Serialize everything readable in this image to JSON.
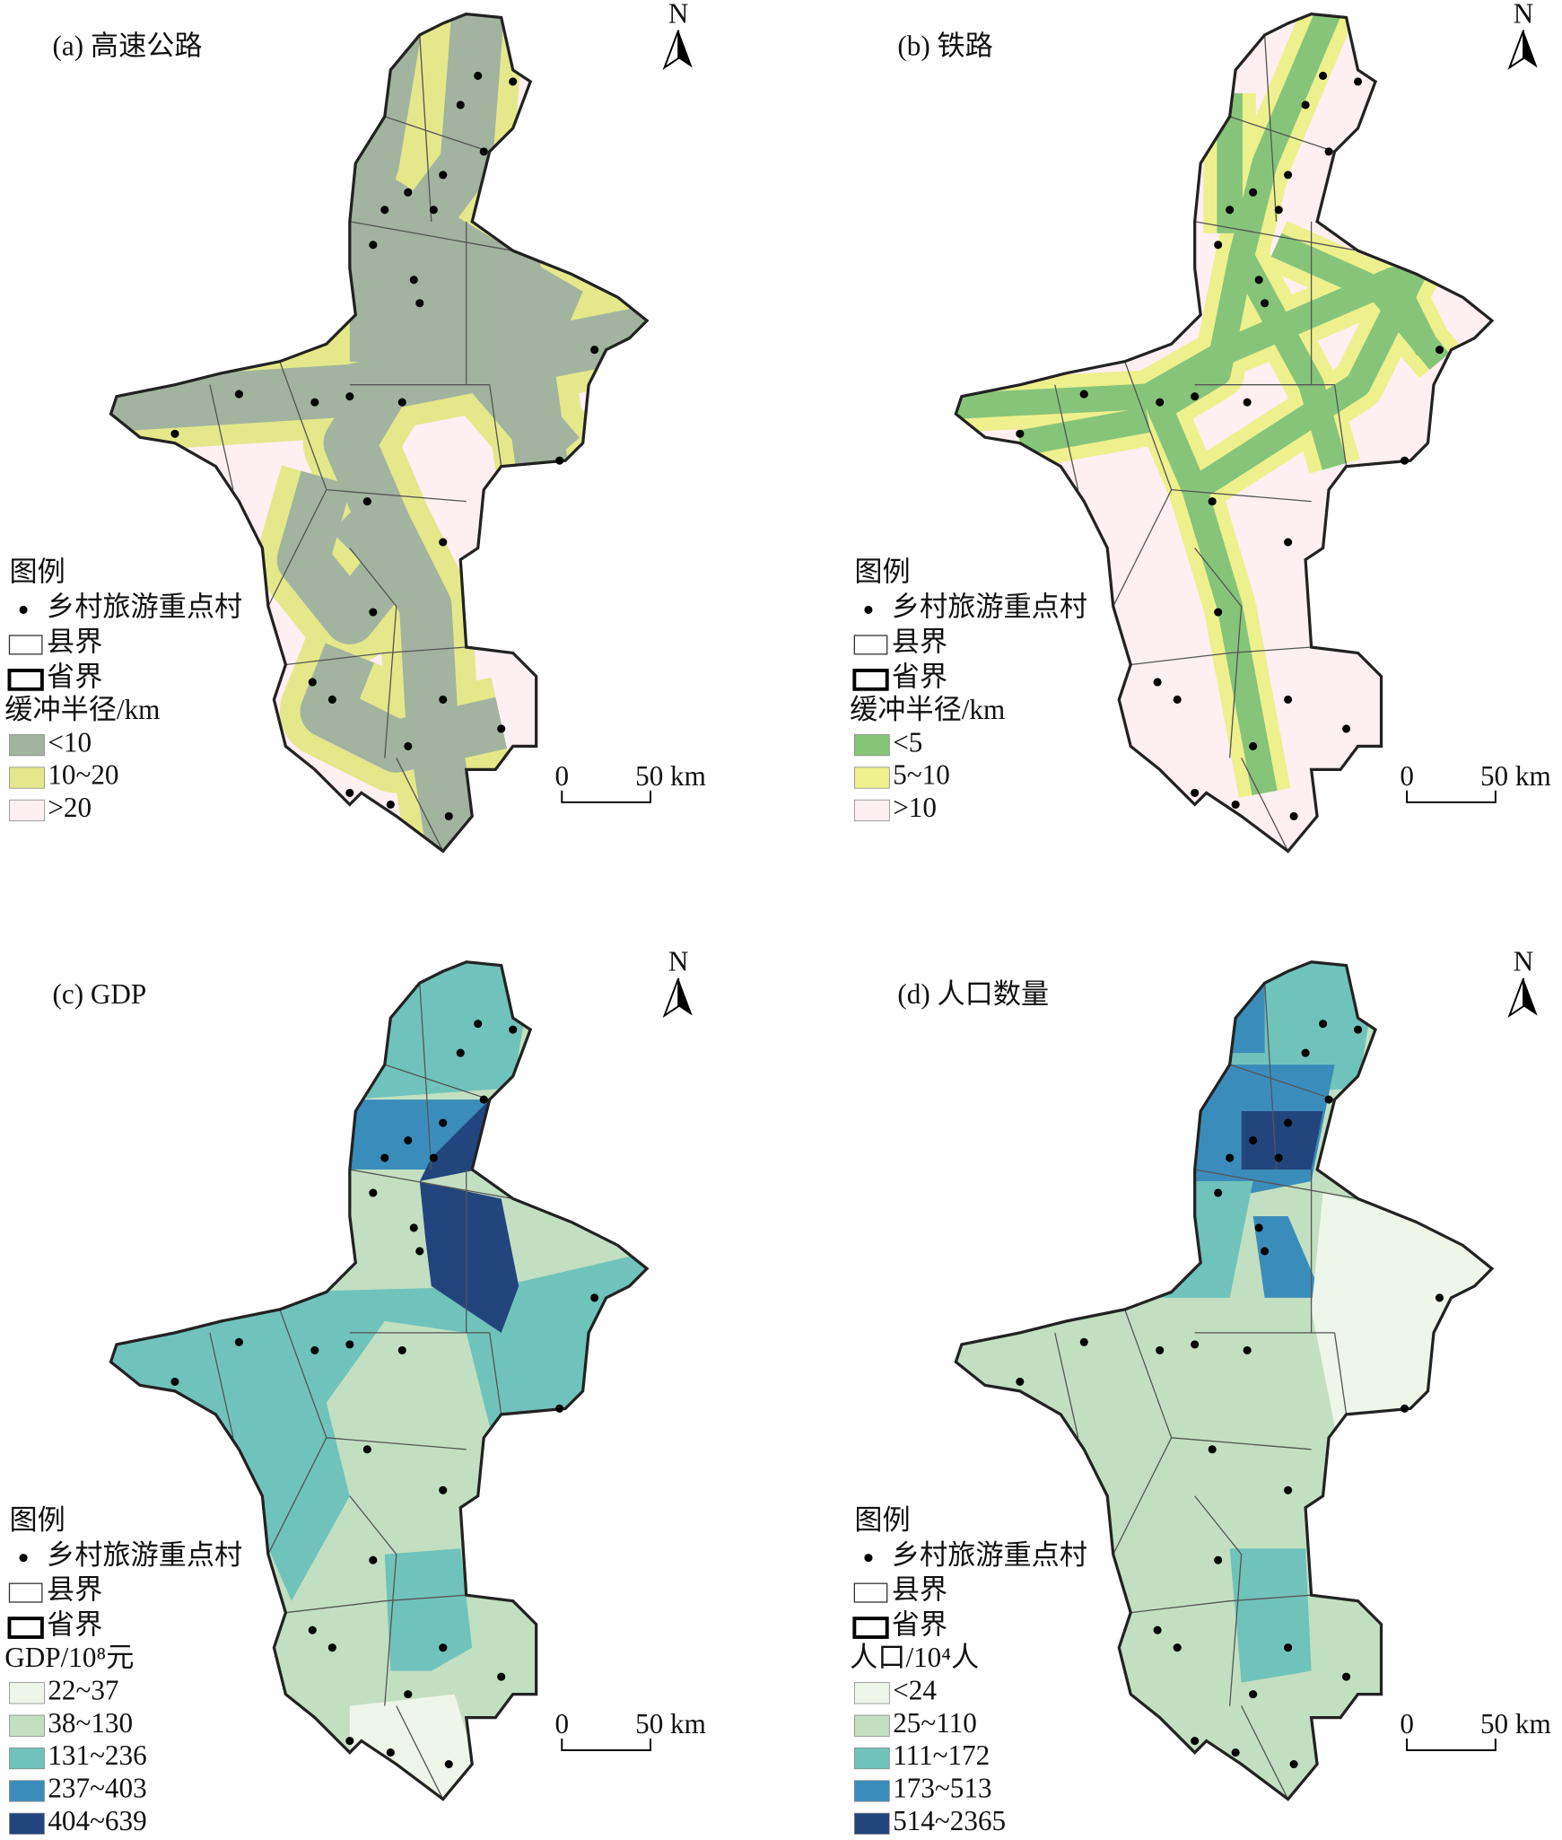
{
  "panels": [
    {
      "title": "(a) 高速公路",
      "north": "N",
      "legend": {
        "title": "图例",
        "items": [
          "乡村旅游重点村",
          "县界",
          "省界"
        ],
        "class_title": "缓冲半径/km",
        "classes": [
          {
            "label": "<10",
            "color": "#a2b39f"
          },
          {
            "label": "10~20",
            "color": "#e4e88a"
          },
          {
            "label": ">20",
            "color": "#fdeff2"
          }
        ]
      },
      "scale": {
        "start": "0",
        "end": "50 km"
      }
    },
    {
      "title": "(b) 铁路",
      "north": "N",
      "legend": {
        "title": "图例",
        "items": [
          "乡村旅游重点村",
          "县界",
          "省界"
        ],
        "class_title": "缓冲半径/km",
        "classes": [
          {
            "label": "<5",
            "color": "#86c47a"
          },
          {
            "label": "5~10",
            "color": "#eef08e"
          },
          {
            "label": ">10",
            "color": "#fdeff2"
          }
        ]
      },
      "scale": {
        "start": "0",
        "end": "50 km"
      }
    },
    {
      "title": "(c) GDP",
      "north": "N",
      "legend": {
        "title": "图例",
        "items": [
          "乡村旅游重点村",
          "县界",
          "省界"
        ],
        "class_title": "GDP/10⁸元",
        "classes": [
          {
            "label": "22~37",
            "color": "#eef5e9"
          },
          {
            "label": "38~130",
            "color": "#c2dfc2"
          },
          {
            "label": "131~236",
            "color": "#6fc3ba"
          },
          {
            "label": "237~403",
            "color": "#3a8dbb"
          },
          {
            "label": "404~639",
            "color": "#22457e"
          }
        ]
      },
      "scale": {
        "start": "0",
        "end": "50 km"
      }
    },
    {
      "title": "(d) 人口数量",
      "north": "N",
      "legend": {
        "title": "图例",
        "items": [
          "乡村旅游重点村",
          "县界",
          "省界"
        ],
        "class_title": "人口/10⁴人",
        "classes": [
          {
            "label": "<24",
            "color": "#eef5e9"
          },
          {
            "label": "25~110",
            "color": "#c2dfc2"
          },
          {
            "label": "111~172",
            "color": "#6fc3ba"
          },
          {
            "label": "173~513",
            "color": "#3a8dbb"
          },
          {
            "label": "514~2365",
            "color": "#22457e"
          }
        ]
      },
      "scale": {
        "start": "0",
        "end": "50 km"
      }
    }
  ]
}
